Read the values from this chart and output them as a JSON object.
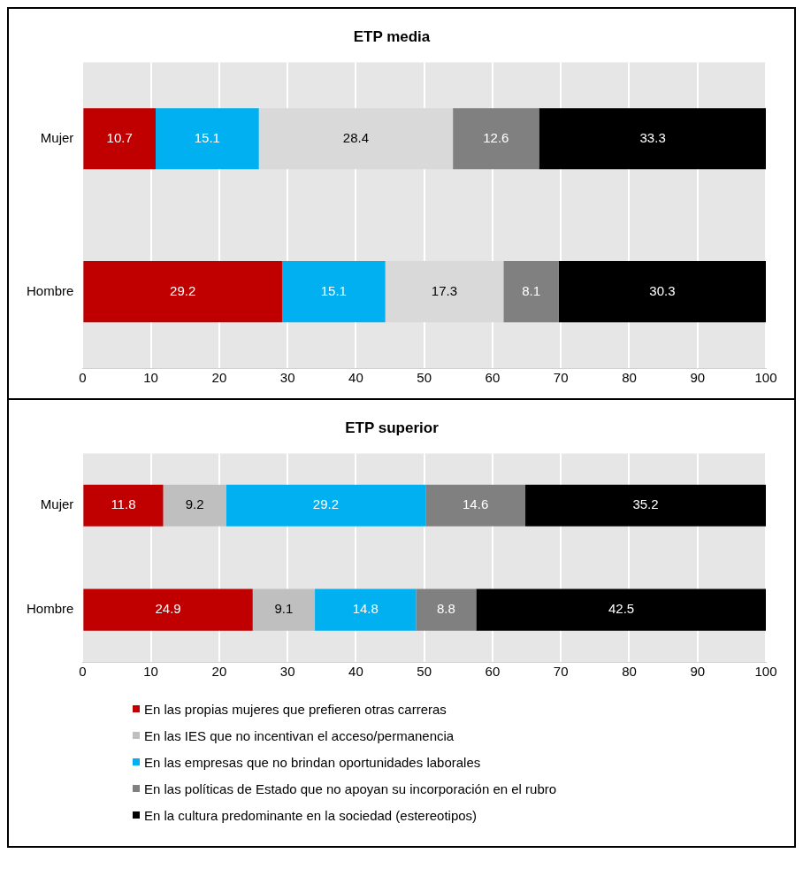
{
  "chart_data": [
    {
      "type": "bar",
      "title": "ETP media",
      "orientation": "horizontal",
      "stacked": true,
      "categories": [
        "Mujer",
        "Hombre"
      ],
      "xlim": [
        0,
        100
      ],
      "xticks": [
        0,
        10,
        20,
        30,
        40,
        50,
        60,
        70,
        80,
        90,
        100
      ],
      "grid": "x",
      "data_labels": true,
      "legend": false,
      "series": [
        {
          "color": "#c00000",
          "values": [
            10.7,
            29.2
          ]
        },
        {
          "color": "#00b0f0",
          "values": [
            15.1,
            15.1
          ]
        },
        {
          "color": "#d9d9d9",
          "values": [
            28.4,
            17.3
          ]
        },
        {
          "color": "#808080",
          "values": [
            12.6,
            8.1
          ]
        },
        {
          "color": "#000000",
          "values": [
            33.3,
            30.3
          ]
        }
      ]
    },
    {
      "type": "bar",
      "title": "ETP superior",
      "orientation": "horizontal",
      "stacked": true,
      "categories": [
        "Mujer",
        "Hombre"
      ],
      "xlim": [
        0,
        100
      ],
      "xticks": [
        0,
        10,
        20,
        30,
        40,
        50,
        60,
        70,
        80,
        90,
        100
      ],
      "grid": "x",
      "data_labels": true,
      "legend": "bottom",
      "series": [
        {
          "name": "En las propias mujeres que prefieren otras carreras",
          "color": "#c00000",
          "values": [
            11.8,
            24.9
          ]
        },
        {
          "name": "En las IES que no incentivan el acceso/permanencia",
          "color": "#bfbfbf",
          "values": [
            9.2,
            9.1
          ]
        },
        {
          "name": "En las empresas que no brindan oportunidades laborales",
          "color": "#00b0f0",
          "values": [
            29.2,
            14.8
          ]
        },
        {
          "name": "En las políticas de Estado que no apoyan su incorporación en el rubro",
          "color": "#808080",
          "values": [
            14.6,
            8.8
          ]
        },
        {
          "name": "En la cultura predominante en la sociedad (estereotipos)",
          "color": "#000000",
          "values": [
            35.2,
            42.5
          ]
        }
      ]
    }
  ]
}
